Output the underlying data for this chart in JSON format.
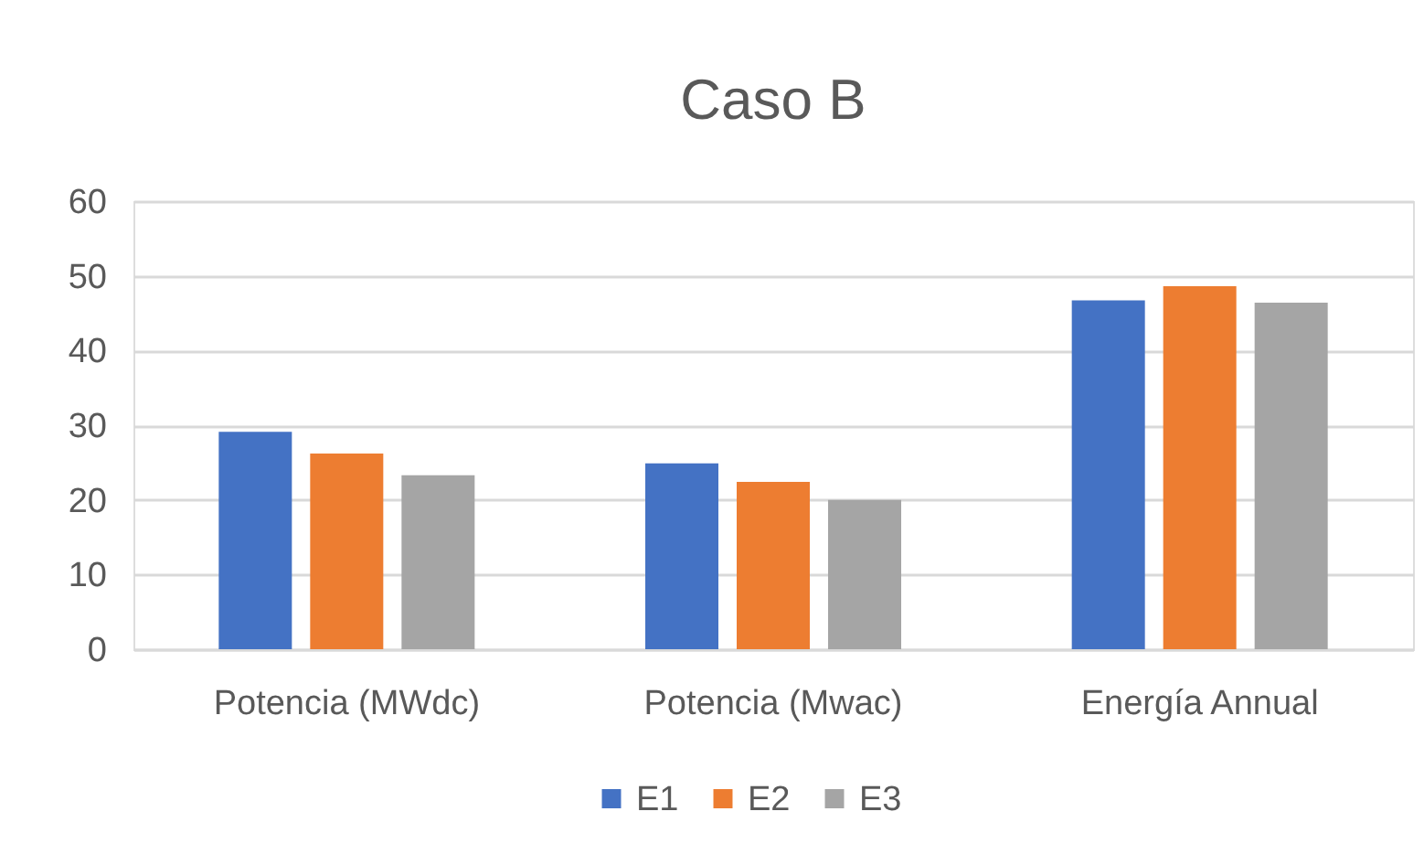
{
  "chart_data": {
    "type": "bar",
    "title": "Caso B",
    "categories": [
      "Potencia (MWdc)",
      "Potencia (Mwac)",
      "Energía Annual"
    ],
    "series": [
      {
        "name": "E1",
        "color": "#4472c4",
        "values": [
          29.1,
          24.9,
          46.7
        ]
      },
      {
        "name": "E2",
        "color": "#ed7d31",
        "values": [
          26.2,
          22.4,
          48.6
        ]
      },
      {
        "name": "E3",
        "color": "#a5a5a5",
        "values": [
          23.3,
          20.0,
          46.4
        ]
      }
    ],
    "ylim": [
      0,
      60
    ],
    "yticks": [
      0,
      10,
      20,
      30,
      40,
      50,
      60
    ],
    "grid": "y",
    "legend": "bottom"
  }
}
